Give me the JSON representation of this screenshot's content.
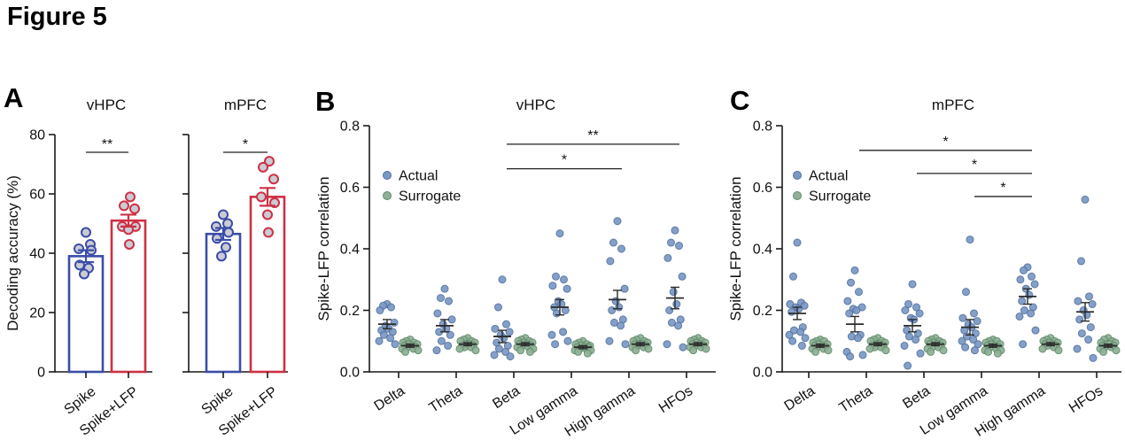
{
  "figure_title": "Figure 5",
  "panels": {
    "a_label": "A",
    "b_label": "B",
    "c_label": "C"
  },
  "colors": {
    "background": "#ffffff",
    "bar_blue": "#3b4da8",
    "bar_red": "#cf3044",
    "point_fill": "#cacbd4",
    "actual_fill": "#7b98c4",
    "actual_edge": "#50709f",
    "surrogate_fill": "#8fb096",
    "surrogate_edge": "#5f8a68",
    "axis": "#1a1a1a"
  },
  "chart_data": [
    {
      "type": "bar",
      "panel": "A",
      "ylabel": "Decoding accuracy (%)",
      "ylim": [
        0,
        80
      ],
      "yticks": [
        0,
        20,
        40,
        60,
        80
      ],
      "subplots": [
        {
          "title": "vHPC",
          "significance": "**",
          "categories": [
            "Spike",
            "Spike+LFP"
          ],
          "series": [
            {
              "name": "Spike",
              "color_key": "blue",
              "mean": 39,
              "sem": 2,
              "points": [
                47,
                43,
                41.5,
                41,
                36,
                35,
                33
              ]
            },
            {
              "name": "Spike+LFP",
              "color_key": "red",
              "mean": 51,
              "sem": 2,
              "points": [
                59,
                56,
                55,
                49,
                49,
                48,
                43
              ]
            }
          ]
        },
        {
          "title": "mPFC",
          "significance": "*",
          "categories": [
            "Spike",
            "Spike+LFP"
          ],
          "series": [
            {
              "name": "Spike",
              "color_key": "blue",
              "mean": 46.5,
              "sem": 2,
              "points": [
                53,
                50,
                49,
                47,
                45,
                42,
                39
              ]
            },
            {
              "name": "Spike+LFP",
              "color_key": "red",
              "mean": 59,
              "sem": 3,
              "points": [
                71,
                69,
                65,
                59,
                57,
                53,
                47
              ]
            }
          ]
        }
      ]
    },
    {
      "type": "scatter",
      "panel": "B",
      "title": "vHPC",
      "ylabel": "Spike-LFP correlation",
      "ylim": [
        0,
        0.8
      ],
      "yticks": [
        "0.0",
        "0.2",
        "0.4",
        "0.6",
        "0.8"
      ],
      "categories": [
        "Delta",
        "Theta",
        "Beta",
        "Low gamma",
        "High gamma",
        "HFOs"
      ],
      "legend": [
        {
          "label": "Actual",
          "key": "actual"
        },
        {
          "label": "Surrogate",
          "key": "surrogate"
        }
      ],
      "significance": [
        {
          "from": "Beta",
          "to": "HFOs",
          "label": "**",
          "level": 0.74
        },
        {
          "from": "Beta",
          "to": "High gamma",
          "label": "*",
          "level": 0.66
        }
      ],
      "groups": [
        {
          "category": "Delta",
          "actual": {
            "mean": 0.155,
            "sem": 0.015,
            "points": [
              0.22,
              0.215,
              0.21,
              0.2,
              0.16,
              0.15,
              0.14,
              0.135,
              0.13,
              0.12,
              0.11,
              0.1,
              0.09
            ]
          },
          "surrogate": {
            "mean": 0.085,
            "sem": 0.005,
            "points": [
              0.105,
              0.1,
              0.095,
              0.095,
              0.09,
              0.09,
              0.085,
              0.085,
              0.08,
              0.08,
              0.075,
              0.075,
              0.07,
              0.065
            ]
          }
        },
        {
          "category": "Theta",
          "actual": {
            "mean": 0.15,
            "sem": 0.02,
            "points": [
              0.27,
              0.24,
              0.23,
              0.19,
              0.17,
              0.155,
              0.14,
              0.13,
              0.12,
              0.1,
              0.085,
              0.07
            ]
          },
          "surrogate": {
            "mean": 0.09,
            "sem": 0.005,
            "points": [
              0.11,
              0.105,
              0.1,
              0.1,
              0.095,
              0.09,
              0.09,
              0.085,
              0.085,
              0.08,
              0.08,
              0.075,
              0.07
            ]
          }
        },
        {
          "category": "Beta",
          "actual": {
            "mean": 0.115,
            "sem": 0.02,
            "points": [
              0.3,
              0.21,
              0.155,
              0.14,
              0.13,
              0.12,
              0.11,
              0.095,
              0.085,
              0.075,
              0.065,
              0.055,
              0.05
            ]
          },
          "surrogate": {
            "mean": 0.09,
            "sem": 0.005,
            "points": [
              0.11,
              0.105,
              0.1,
              0.1,
              0.095,
              0.095,
              0.09,
              0.09,
              0.085,
              0.085,
              0.08,
              0.08,
              0.075,
              0.07,
              0.065
            ]
          }
        },
        {
          "category": "Low gamma",
          "actual": {
            "mean": 0.21,
            "sem": 0.025,
            "points": [
              0.45,
              0.31,
              0.3,
              0.28,
              0.27,
              0.23,
              0.22,
              0.21,
              0.2,
              0.19,
              0.13,
              0.12,
              0.1,
              0.09
            ]
          },
          "surrogate": {
            "mean": 0.08,
            "sem": 0.005,
            "points": [
              0.1,
              0.095,
              0.09,
              0.09,
              0.085,
              0.085,
              0.08,
              0.08,
              0.08,
              0.075,
              0.075,
              0.07,
              0.07,
              0.065,
              0.06
            ]
          }
        },
        {
          "category": "High gamma",
          "actual": {
            "mean": 0.235,
            "sem": 0.03,
            "points": [
              0.49,
              0.42,
              0.4,
              0.36,
              0.27,
              0.23,
              0.21,
              0.2,
              0.17,
              0.16,
              0.15,
              0.1,
              0.09
            ]
          },
          "surrogate": {
            "mean": 0.09,
            "sem": 0.005,
            "points": [
              0.11,
              0.105,
              0.1,
              0.1,
              0.095,
              0.09,
              0.09,
              0.09,
              0.085,
              0.085,
              0.08,
              0.08,
              0.075,
              0.07
            ]
          }
        },
        {
          "category": "HFOs",
          "actual": {
            "mean": 0.24,
            "sem": 0.035,
            "points": [
              0.46,
              0.42,
              0.41,
              0.37,
              0.31,
              0.26,
              0.22,
              0.2,
              0.17,
              0.16,
              0.15,
              0.09,
              0.08
            ]
          },
          "surrogate": {
            "mean": 0.09,
            "sem": 0.005,
            "points": [
              0.11,
              0.105,
              0.1,
              0.1,
              0.095,
              0.095,
              0.09,
              0.09,
              0.085,
              0.085,
              0.08,
              0.08,
              0.075,
              0.07
            ]
          }
        }
      ]
    },
    {
      "type": "scatter",
      "panel": "C",
      "title": "mPFC",
      "ylabel": "Spike-LFP correlation",
      "ylim": [
        0,
        0.8
      ],
      "yticks": [
        "0.0",
        "0.2",
        "0.4",
        "0.6",
        "0.8"
      ],
      "categories": [
        "Delta",
        "Theta",
        "Beta",
        "Low gamma",
        "High gamma",
        "HFOs"
      ],
      "legend": [
        {
          "label": "Actual",
          "key": "actual"
        },
        {
          "label": "Surrogate",
          "key": "surrogate"
        }
      ],
      "significance": [
        {
          "from": "Theta",
          "to": "High gamma",
          "label": "*",
          "level": 0.72
        },
        {
          "from": "Beta",
          "to": "High gamma",
          "label": "*",
          "level": 0.645
        },
        {
          "from": "Low gamma",
          "to": "High gamma",
          "label": "*",
          "level": 0.57
        }
      ],
      "groups": [
        {
          "category": "Delta",
          "actual": {
            "mean": 0.19,
            "sem": 0.02,
            "points": [
              0.42,
              0.31,
              0.225,
              0.22,
              0.215,
              0.21,
              0.205,
              0.195,
              0.145,
              0.135,
              0.13,
              0.12,
              0.11,
              0.1,
              0.085
            ]
          },
          "surrogate": {
            "mean": 0.085,
            "sem": 0.005,
            "points": [
              0.105,
              0.1,
              0.1,
              0.095,
              0.09,
              0.09,
              0.085,
              0.085,
              0.08,
              0.08,
              0.075,
              0.075,
              0.07,
              0.065
            ]
          }
        },
        {
          "category": "Theta",
          "actual": {
            "mean": 0.155,
            "sem": 0.025,
            "points": [
              0.33,
              0.29,
              0.26,
              0.23,
              0.21,
              0.205,
              0.2,
              0.19,
              0.12,
              0.115,
              0.11,
              0.065,
              0.055,
              0.05
            ]
          },
          "surrogate": {
            "mean": 0.09,
            "sem": 0.005,
            "points": [
              0.11,
              0.105,
              0.1,
              0.1,
              0.095,
              0.09,
              0.09,
              0.085,
              0.085,
              0.08,
              0.08,
              0.075,
              0.07
            ]
          }
        },
        {
          "category": "Beta",
          "actual": {
            "mean": 0.15,
            "sem": 0.02,
            "points": [
              0.285,
              0.22,
              0.21,
              0.2,
              0.19,
              0.175,
              0.17,
              0.135,
              0.125,
              0.115,
              0.105,
              0.085,
              0.06,
              0.02
            ]
          },
          "surrogate": {
            "mean": 0.09,
            "sem": 0.005,
            "points": [
              0.11,
              0.105,
              0.1,
              0.1,
              0.095,
              0.095,
              0.09,
              0.09,
              0.085,
              0.08,
              0.08,
              0.075,
              0.07,
              0.065
            ]
          }
        },
        {
          "category": "Low gamma",
          "actual": {
            "mean": 0.145,
            "sem": 0.025,
            "points": [
              0.43,
              0.26,
              0.19,
              0.175,
              0.165,
              0.155,
              0.145,
              0.135,
              0.125,
              0.115,
              0.105,
              0.1,
              0.09,
              0.08,
              0.07
            ]
          },
          "surrogate": {
            "mean": 0.085,
            "sem": 0.005,
            "points": [
              0.105,
              0.1,
              0.1,
              0.095,
              0.09,
              0.09,
              0.085,
              0.085,
              0.08,
              0.08,
              0.075,
              0.07,
              0.07,
              0.065,
              0.06
            ]
          }
        },
        {
          "category": "High gamma",
          "actual": {
            "mean": 0.245,
            "sem": 0.025,
            "points": [
              0.34,
              0.33,
              0.31,
              0.3,
              0.285,
              0.27,
              0.25,
              0.23,
              0.21,
              0.2,
              0.19,
              0.18,
              0.135,
              0.09
            ]
          },
          "surrogate": {
            "mean": 0.09,
            "sem": 0.005,
            "points": [
              0.11,
              0.105,
              0.1,
              0.1,
              0.095,
              0.095,
              0.09,
              0.09,
              0.085,
              0.085,
              0.08,
              0.075,
              0.07
            ]
          }
        },
        {
          "category": "HFOs",
          "actual": {
            "mean": 0.195,
            "sem": 0.03,
            "points": [
              0.56,
              0.36,
              0.245,
              0.23,
              0.22,
              0.2,
              0.185,
              0.17,
              0.145,
              0.125,
              0.105,
              0.075,
              0.045
            ]
          },
          "surrogate": {
            "mean": 0.085,
            "sem": 0.005,
            "points": [
              0.11,
              0.105,
              0.1,
              0.095,
              0.095,
              0.09,
              0.09,
              0.085,
              0.085,
              0.08,
              0.08,
              0.075,
              0.07,
              0.065
            ]
          }
        }
      ]
    }
  ]
}
